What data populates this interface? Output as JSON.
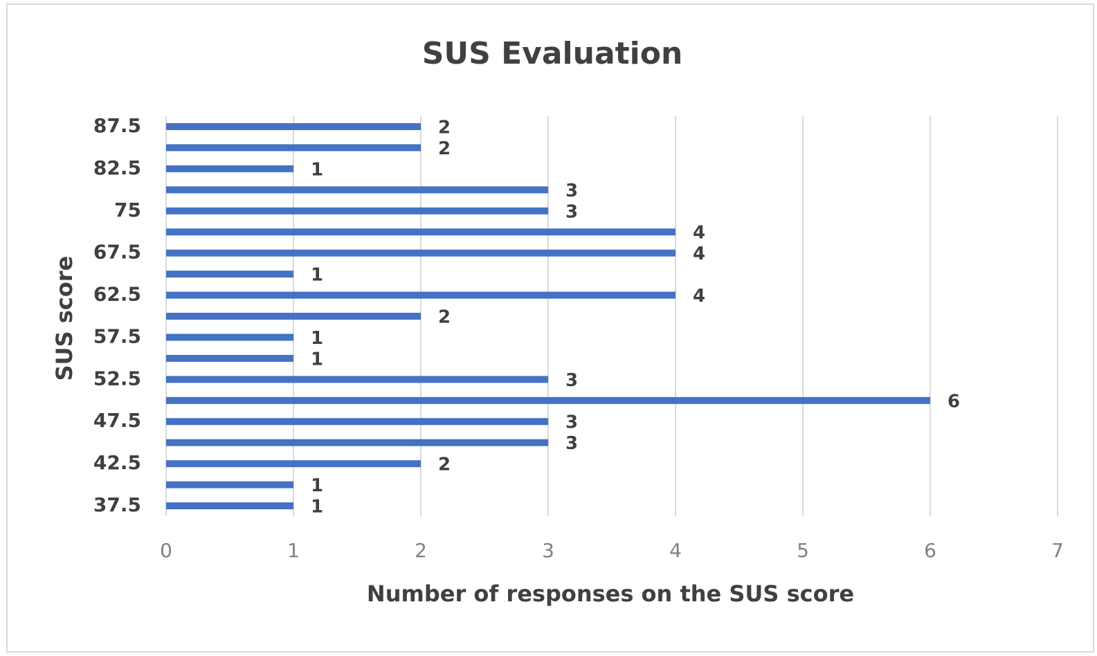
{
  "chart_data": {
    "type": "bar",
    "orientation": "horizontal",
    "title": "SUS Evaluation",
    "x_label": "Number of responses on the SUS score",
    "y_label": "SUS score",
    "categories": [
      "37.5",
      null,
      "42.5",
      null,
      "47.5",
      null,
      "52.5",
      null,
      "57.5",
      null,
      "62.5",
      null,
      "67.5",
      null,
      "75",
      null,
      "82.5",
      null,
      "87.5"
    ],
    "values": [
      1,
      1,
      2,
      3,
      3,
      6,
      3,
      1,
      1,
      2,
      4,
      1,
      4,
      4,
      3,
      3,
      1,
      2,
      2
    ],
    "color": "#4472c4",
    "xlim": [
      0,
      7
    ],
    "xticks": [
      0,
      1,
      2,
      3,
      4,
      5,
      6,
      7
    ],
    "grid": true
  }
}
